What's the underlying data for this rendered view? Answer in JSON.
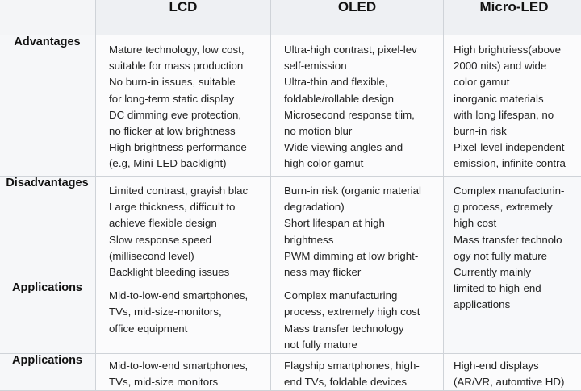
{
  "table": {
    "columns": [
      "",
      "LCD",
      "OLED",
      "Micro-LED"
    ],
    "rows": [
      {
        "label": "Advantages",
        "cells": [
          [
            "Mature technology, low cost,",
            "suitable for mass production",
            "No burn-in issues, suitable",
            "for long-term static display",
            "DC dimming eve protection,",
            "no flicker at low brightness",
            "High brightness performance",
            "(e.g, Mini-LED backlight)"
          ],
          [
            "Ultra-high contrast, pixel-lev",
            "self-emission",
            "Ultra-thin and flexible,",
            "foldable/rollable design",
            "Microsecond response tiim,",
            "no motion blur",
            "Wide viewing angles and",
            "high color gamut"
          ],
          [
            "High brightriess(above",
            "2000 nits) and wide",
            "color gamut",
            "inorganic materials",
            "with long lifespan, no",
            "burn-in risk",
            "Pixel-level independent",
            "emission, infinite contra"
          ]
        ]
      },
      {
        "label": "Disadvantages",
        "cells": [
          [
            "Limited contrast, grayish blac",
            "Large thickness, difficult to",
            "achieve flexible design",
            "Slow response speed",
            "(millisecond level)",
            "Backlight bleeding issues"
          ],
          [
            "Burn-in risk (organic material",
            "degradation)",
            "Short lifespan at high",
            "brightness",
            "PWM dimming at low bright-",
            "ness may flicker"
          ],
          [
            "Complex manufacturin-",
            "g process, extremely",
            "high cost",
            "Mass transfer technolo",
            "ogy not fully mature",
            "Currently mainly",
            "limited to high-end",
            "applications"
          ]
        ]
      },
      {
        "label": "Applications",
        "cells": [
          [
            "Mid-to-low-end smartphones,",
            "TVs, mid-size-monitors,",
            "office equipment"
          ],
          [
            "Complex manufacturing",
            "process, extremely high cost",
            "Mass transfer technology",
            "not fully mature"
          ]
        ]
      },
      {
        "label": "Applications",
        "cells": [
          [
            "Mid-to-low-end smartphones,",
            "TVs, mid-size monitors"
          ],
          [
            "Flagship smartphones, high-",
            "end TVs, foldable devices"
          ],
          [
            "High-end displays",
            "(AR/VR, automtive HD)"
          ]
        ]
      }
    ]
  }
}
